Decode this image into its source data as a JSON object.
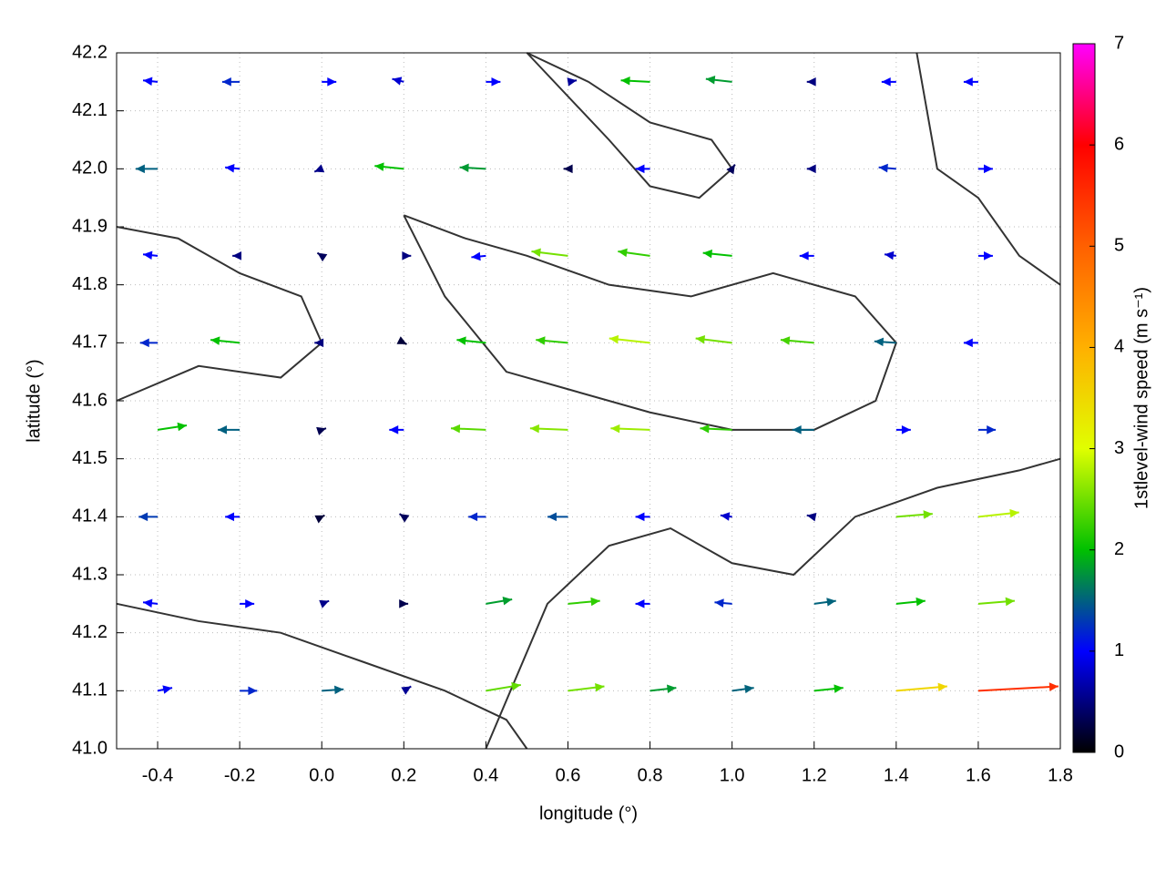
{
  "chart_data": {
    "type": "quiver",
    "xlabel": "longitude (°)",
    "ylabel": "latitude (°)",
    "colorbar_label": "1stlevel-wind speed (m s⁻¹)",
    "xlim": [
      -0.5,
      1.8
    ],
    "ylim": [
      41.0,
      42.2
    ],
    "xticks": [
      -0.4,
      -0.2,
      {
        "value": 0,
        "label": "0.0"
      },
      0.2,
      0.4,
      0.6,
      0.8,
      {
        "value": 1,
        "label": "1.0"
      },
      1.2,
      1.4,
      1.6,
      1.8
    ],
    "yticks": [
      {
        "value": 41,
        "label": "41.0"
      },
      41.1,
      41.2,
      41.3,
      41.4,
      41.5,
      41.6,
      41.7,
      41.8,
      41.9,
      {
        "value": 42,
        "label": "42.0"
      },
      42.1,
      42.2
    ],
    "grid": true,
    "clim": [
      0,
      7
    ],
    "cticks": [
      0,
      1,
      2,
      3,
      4,
      5,
      6,
      7
    ],
    "colormap": [
      "#000000",
      "#0000ff",
      "#00c000",
      "#e0ff00",
      "#ffb000",
      "#ff6000",
      "#ff0000",
      "#ff00ff"
    ],
    "vectors": {
      "x": [
        -0.4,
        -0.2,
        0,
        0.2,
        0.4,
        0.6,
        0.8,
        1,
        1.2,
        1.4,
        1.6,
        -0.4,
        -0.2,
        0,
        0.2,
        0.4,
        0.6,
        0.8,
        1,
        1.2,
        1.4,
        1.6,
        -0.4,
        -0.2,
        0,
        0.2,
        0.4,
        0.6,
        0.8,
        1,
        1.2,
        1.4,
        1.6,
        -0.4,
        -0.2,
        0,
        0.2,
        0.4,
        0.6,
        0.8,
        1,
        1.2,
        1.4,
        1.6,
        -0.4,
        -0.2,
        0,
        0.2,
        0.4,
        0.6,
        0.8,
        1,
        1.2,
        1.4,
        1.6,
        -0.4,
        -0.2,
        0,
        0.2,
        0.4,
        0.6,
        0.8,
        1,
        1.2,
        1.4,
        1.6,
        -0.4,
        -0.2,
        0,
        0.2,
        0.4,
        0.6,
        0.8,
        1,
        1.2,
        1.4,
        1.6,
        -0.4,
        -0.2,
        0,
        0.2,
        0.4,
        0.6,
        0.8,
        1,
        1.2,
        1.4,
        1.6
      ],
      "y": [
        42.15,
        42.15,
        42.15,
        42.15,
        42.15,
        42.15,
        42.15,
        42.15,
        42.15,
        42.15,
        42.15,
        42,
        42,
        42,
        42,
        42,
        42,
        42,
        42,
        42,
        42,
        42,
        41.85,
        41.85,
        41.85,
        41.85,
        41.85,
        41.85,
        41.85,
        41.85,
        41.85,
        41.85,
        41.85,
        41.7,
        41.7,
        41.7,
        41.7,
        41.7,
        41.7,
        41.7,
        41.7,
        41.7,
        41.7,
        41.7,
        41.55,
        41.55,
        41.55,
        41.55,
        41.55,
        41.55,
        41.55,
        41.55,
        41.55,
        41.55,
        41.55,
        41.4,
        41.4,
        41.4,
        41.4,
        41.4,
        41.4,
        41.4,
        41.4,
        41.4,
        41.4,
        41.4,
        41.25,
        41.25,
        41.25,
        41.25,
        41.25,
        41.25,
        41.25,
        41.25,
        41.25,
        41.25,
        41.25,
        41.1,
        41.1,
        41.1,
        41.1,
        41.1,
        41.1,
        41.1,
        41.1,
        41.1,
        41.1,
        41.1
      ],
      "u": [
        -1,
        -1.2,
        1,
        -0.8,
        1,
        0.6,
        -2,
        -1.8,
        -0.5,
        -1,
        -1,
        -1.5,
        -1,
        -0.5,
        -2,
        -1.8,
        -0.3,
        -1,
        0.2,
        -0.5,
        -1.2,
        1,
        -1,
        -0.5,
        -0.3,
        0.5,
        -1,
        -2.5,
        -2.2,
        -2,
        -1,
        -0.8,
        1,
        -1.2,
        -2,
        -0.5,
        0.2,
        -2,
        -2.2,
        -2.8,
        -2.5,
        -2.3,
        -1.5,
        -1,
        2,
        -1.5,
        0.3,
        -1,
        -2.4,
        -2.6,
        -2.7,
        -2.2,
        -1.5,
        1,
        1.2,
        -1.3,
        -1,
        0.2,
        -0.3,
        -1.2,
        -1.4,
        -1,
        -0.8,
        -0.5,
        2.5,
        2.8,
        -1,
        1,
        0.5,
        0.3,
        1.8,
        2.2,
        -1,
        -1.2,
        1.5,
        2,
        2.5,
        1,
        1.2,
        1.5,
        0.5,
        2.4,
        2.5,
        1.8,
        1.5,
        2,
        3.5,
        5.5
      ],
      "v": [
        0.1,
        0,
        0,
        0.2,
        0,
        0.1,
        0.1,
        0.2,
        0,
        0,
        0,
        0,
        0.1,
        -0.2,
        0.2,
        0.1,
        0,
        0,
        0.3,
        0,
        0.1,
        0,
        0.1,
        0,
        0.2,
        0,
        -0.1,
        0.3,
        0.3,
        0.2,
        0,
        0.1,
        0,
        0,
        0.2,
        0,
        -0.1,
        0.2,
        0.2,
        0.3,
        0.3,
        0.2,
        0.1,
        0,
        0.3,
        0,
        0.1,
        0,
        0.1,
        0.1,
        0.1,
        0.1,
        0,
        0,
        0,
        0,
        0,
        0.1,
        0.2,
        0,
        0,
        0,
        0.1,
        0.1,
        0.2,
        0.3,
        0.1,
        0,
        0.2,
        0,
        0.3,
        0.2,
        0,
        0.1,
        0.2,
        0.2,
        0.2,
        0.2,
        0,
        0.1,
        0.3,
        0.4,
        0.3,
        0.2,
        0.2,
        0.2,
        0.3,
        0.3
      ]
    },
    "contours": [
      {
        "x": [
          -0.5,
          -0.35,
          -0.2,
          -0.05,
          0.0,
          -0.1,
          -0.3,
          -0.5
        ],
        "y": [
          41.9,
          41.88,
          41.82,
          41.78,
          41.7,
          41.64,
          41.66,
          41.6
        ]
      },
      {
        "x": [
          0.2,
          0.35,
          0.5,
          0.7,
          0.9,
          1.1,
          1.3,
          1.4,
          1.35,
          1.2,
          1.0,
          0.8,
          0.6,
          0.45,
          0.3,
          0.2
        ],
        "y": [
          41.92,
          41.88,
          41.85,
          41.8,
          41.78,
          41.82,
          41.78,
          41.7,
          41.6,
          41.55,
          41.55,
          41.58,
          41.62,
          41.65,
          41.78,
          41.92
        ]
      },
      {
        "x": [
          0.5,
          0.65,
          0.8,
          0.95,
          1.0,
          0.92,
          0.8,
          0.7,
          0.5
        ],
        "y": [
          42.2,
          42.15,
          42.08,
          42.05,
          42.0,
          41.95,
          41.97,
          42.05,
          42.2
        ]
      },
      {
        "x": [
          0.4,
          0.55,
          0.7,
          0.85,
          1.0,
          1.15,
          1.3,
          1.5,
          1.7,
          1.8
        ],
        "y": [
          41.0,
          41.25,
          41.35,
          41.38,
          41.32,
          41.3,
          41.4,
          41.45,
          41.48,
          41.5
        ]
      },
      {
        "x": [
          -0.5,
          -0.3,
          -0.1,
          0.1,
          0.3,
          0.45,
          0.5
        ],
        "y": [
          41.25,
          41.22,
          41.2,
          41.15,
          41.1,
          41.05,
          41.0
        ]
      },
      {
        "x": [
          1.45,
          1.5,
          1.6,
          1.7,
          1.8
        ],
        "y": [
          42.2,
          42.0,
          41.95,
          41.85,
          41.8
        ]
      }
    ]
  }
}
